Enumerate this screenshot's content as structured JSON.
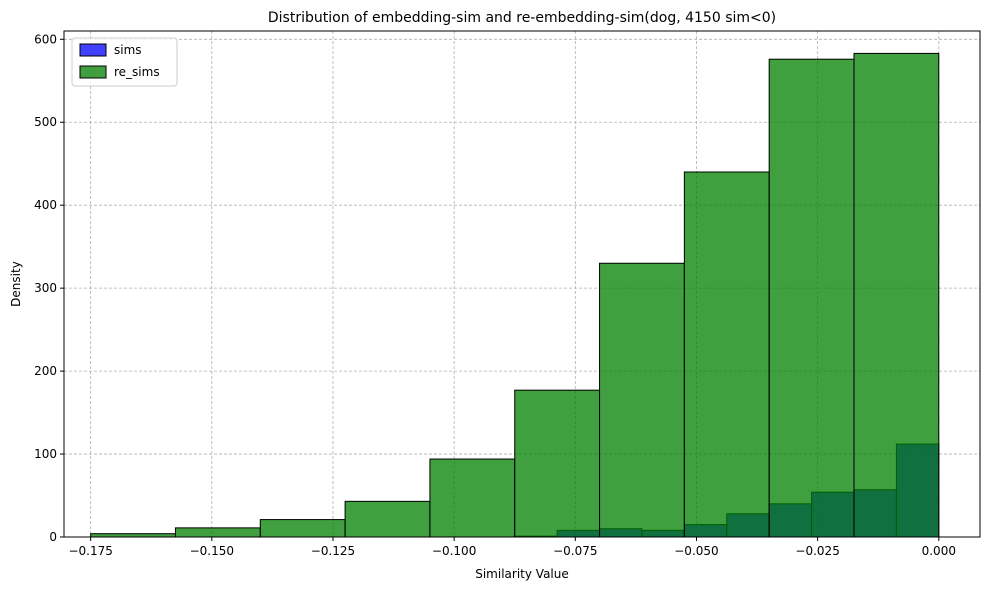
{
  "chart_data": {
    "type": "bar",
    "title": "Distribution of embedding-sim and re-embedding-sim(dog, 4150 sim<0)",
    "xlabel": "Similarity Value",
    "ylabel": "Density",
    "xlim": [
      -0.1805,
      0.0085
    ],
    "ylim": [
      0,
      610
    ],
    "xticks": [
      -0.175,
      -0.15,
      -0.125,
      -0.1,
      -0.075,
      -0.05,
      -0.025,
      0.0
    ],
    "xtick_labels": [
      "−0.175",
      "−0.150",
      "−0.125",
      "−0.100",
      "−0.075",
      "−0.050",
      "−0.025",
      "0.000"
    ],
    "yticks": [
      0,
      100,
      200,
      300,
      400,
      500,
      600
    ],
    "ytick_labels": [
      "0",
      "100",
      "200",
      "300",
      "400",
      "500",
      "600"
    ],
    "grid": true,
    "legend_position": "top-left",
    "series": [
      {
        "name": "sims",
        "color": "#0000ff",
        "edges": [
          -0.0875,
          -0.07875,
          -0.07,
          -0.06125,
          -0.0525,
          -0.04375,
          -0.035,
          -0.02625,
          -0.0175,
          -0.00875,
          0.0
        ],
        "values": [
          1,
          8,
          10,
          8,
          15,
          28,
          40,
          54,
          57,
          112
        ]
      },
      {
        "name": "re_sims",
        "color": "#008000",
        "edges": [
          -0.175,
          -0.1575,
          -0.14,
          -0.1225,
          -0.105,
          -0.0875,
          -0.07,
          -0.0525,
          -0.035,
          -0.0175,
          0.0
        ],
        "values": [
          4,
          11,
          21,
          43,
          94,
          177,
          330,
          440,
          576,
          583
        ]
      }
    ]
  }
}
